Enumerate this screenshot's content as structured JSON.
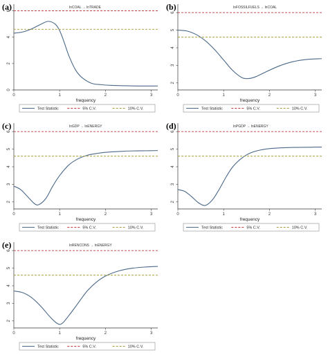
{
  "colors": {
    "test_statistic": "#4a6888",
    "cv5": "#c0393a",
    "cv10": "#a89a3a",
    "axis": "#333333"
  },
  "chart_data": [
    {
      "panel": "(a)",
      "type": "line",
      "title": "lnCOAL → lnTRADE",
      "xlabel": "frequency",
      "ylabel": "",
      "xlim": [
        0,
        3.1416
      ],
      "ylim": [
        0,
        6.4
      ],
      "xticks": [
        0,
        1,
        2,
        3
      ],
      "yticks": [
        0,
        2,
        4,
        6
      ],
      "grid": false,
      "legend_placement": "bottom",
      "series": [
        {
          "name": "Test Statistic",
          "style": "solid",
          "x": [
            0,
            0.2,
            0.4,
            0.6,
            0.75,
            0.9,
            1.0,
            1.1,
            1.2,
            1.35,
            1.5,
            1.7,
            1.9,
            2.1,
            2.4,
            2.7,
            3.1416
          ],
          "y": [
            4.3,
            4.4,
            4.65,
            5.0,
            5.2,
            5.0,
            4.5,
            3.6,
            2.6,
            1.5,
            0.9,
            0.5,
            0.4,
            0.35,
            0.32,
            0.3,
            0.3
          ]
        },
        {
          "name": "5% C.V.",
          "style": "dashed",
          "x": [
            0,
            3.1416
          ],
          "y": [
            6.0,
            6.0
          ]
        },
        {
          "name": "10% C.V.",
          "style": "dashed",
          "x": [
            0,
            3.1416
          ],
          "y": [
            4.6,
            4.6
          ]
        }
      ]
    },
    {
      "panel": "(b)",
      "type": "line",
      "title": "lnFOSSILFUELS → lnCOAL",
      "xlabel": "frequency",
      "ylabel": "",
      "xlim": [
        0,
        3.1416
      ],
      "ylim": [
        1.6,
        6.4
      ],
      "xticks": [
        0,
        1,
        2,
        3
      ],
      "yticks": [
        2,
        3,
        4,
        5,
        6
      ],
      "grid": false,
      "legend_placement": "bottom",
      "series": [
        {
          "name": "Test Statistic",
          "style": "solid",
          "x": [
            0,
            0.2,
            0.4,
            0.6,
            0.8,
            1.0,
            1.2,
            1.4,
            1.55,
            1.7,
            1.9,
            2.2,
            2.5,
            2.8,
            3.1416
          ],
          "y": [
            5.0,
            4.95,
            4.75,
            4.4,
            3.9,
            3.3,
            2.7,
            2.3,
            2.25,
            2.35,
            2.6,
            2.95,
            3.2,
            3.33,
            3.38
          ]
        },
        {
          "name": "5% C.V.",
          "style": "dashed",
          "x": [
            0,
            3.1416
          ],
          "y": [
            6.0,
            6.0
          ]
        },
        {
          "name": "10% C.V.",
          "style": "dashed",
          "x": [
            0,
            3.1416
          ],
          "y": [
            4.6,
            4.6
          ]
        }
      ]
    },
    {
      "panel": "(c)",
      "type": "line",
      "title": "lnGDP → lnENERGY",
      "xlabel": "frequency",
      "ylabel": "",
      "xlim": [
        0,
        3.1416
      ],
      "ylim": [
        1.6,
        6.4
      ],
      "xticks": [
        0,
        1,
        2,
        3
      ],
      "yticks": [
        2,
        3,
        4,
        5,
        6
      ],
      "grid": false,
      "legend_placement": "bottom",
      "series": [
        {
          "name": "Test Statistic",
          "style": "solid",
          "x": [
            0,
            0.15,
            0.3,
            0.45,
            0.55,
            0.7,
            0.85,
            1.0,
            1.2,
            1.4,
            1.6,
            1.8,
            2.0,
            2.3,
            2.6,
            2.9,
            3.1416
          ],
          "y": [
            2.9,
            2.7,
            2.3,
            1.9,
            1.85,
            2.2,
            2.9,
            3.5,
            4.1,
            4.45,
            4.65,
            4.75,
            4.82,
            4.87,
            4.9,
            4.91,
            4.92
          ]
        },
        {
          "name": "5% C.V.",
          "style": "dashed",
          "x": [
            0,
            3.1416
          ],
          "y": [
            6.0,
            6.0
          ]
        },
        {
          "name": "10% C.V.",
          "style": "dashed",
          "x": [
            0,
            3.1416
          ],
          "y": [
            4.6,
            4.6
          ]
        }
      ]
    },
    {
      "panel": "(d)",
      "type": "line",
      "title": "lnPGDP → lnENERGY",
      "xlabel": "frequency",
      "ylabel": "",
      "xlim": [
        0,
        3.1416
      ],
      "ylim": [
        1.6,
        6.4
      ],
      "xticks": [
        0,
        1,
        2,
        3
      ],
      "yticks": [
        2,
        3,
        4,
        5,
        6
      ],
      "grid": false,
      "legend_placement": "bottom",
      "series": [
        {
          "name": "Test Statistic",
          "style": "solid",
          "x": [
            0,
            0.15,
            0.3,
            0.45,
            0.6,
            0.75,
            0.9,
            1.05,
            1.2,
            1.4,
            1.6,
            1.8,
            2.0,
            2.3,
            2.6,
            2.9,
            3.1416
          ],
          "y": [
            2.7,
            2.6,
            2.3,
            1.95,
            1.8,
            2.1,
            2.7,
            3.4,
            4.0,
            4.5,
            4.8,
            4.95,
            5.03,
            5.08,
            5.1,
            5.11,
            5.12
          ]
        },
        {
          "name": "5% C.V.",
          "style": "dashed",
          "x": [
            0,
            3.1416
          ],
          "y": [
            6.0,
            6.0
          ]
        },
        {
          "name": "10% C.V.",
          "style": "dashed",
          "x": [
            0,
            3.1416
          ],
          "y": [
            4.6,
            4.6
          ]
        }
      ]
    },
    {
      "panel": "(e)",
      "type": "line",
      "title": "lnRENCONS → lnENERGY",
      "xlabel": "frequency",
      "ylabel": "",
      "xlim": [
        0,
        3.1416
      ],
      "ylim": [
        1.6,
        6.4
      ],
      "xticks": [
        0,
        1,
        2,
        3
      ],
      "yticks": [
        2,
        3,
        4,
        5,
        6
      ],
      "grid": false,
      "legend_placement": "bottom",
      "series": [
        {
          "name": "Test Statistic",
          "style": "solid",
          "x": [
            0,
            0.2,
            0.4,
            0.6,
            0.8,
            0.95,
            1.05,
            1.2,
            1.4,
            1.6,
            1.8,
            2.0,
            2.3,
            2.6,
            2.9,
            3.1416
          ],
          "y": [
            3.7,
            3.6,
            3.3,
            2.8,
            2.2,
            1.85,
            1.85,
            2.3,
            3.0,
            3.7,
            4.2,
            4.55,
            4.85,
            5.0,
            5.07,
            5.1
          ]
        },
        {
          "name": "5% C.V.",
          "style": "dashed",
          "x": [
            0,
            3.1416
          ],
          "y": [
            6.0,
            6.0
          ]
        },
        {
          "name": "10% C.V.",
          "style": "dashed",
          "x": [
            0,
            3.1416
          ],
          "y": [
            4.6,
            4.6
          ]
        }
      ]
    }
  ]
}
